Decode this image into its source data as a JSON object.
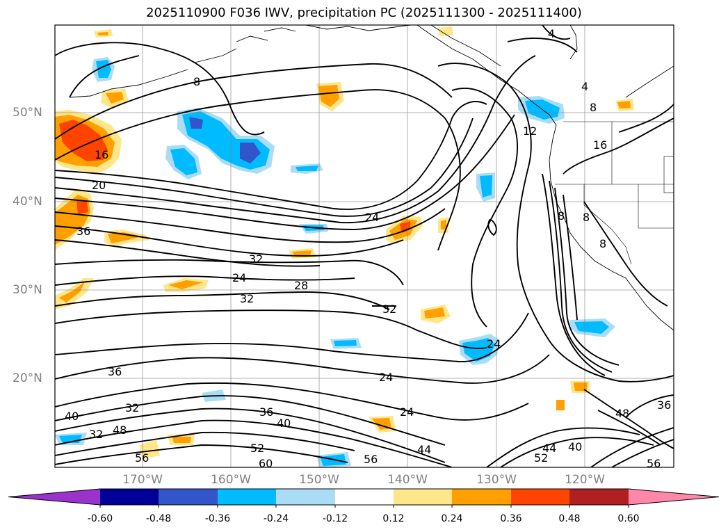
{
  "title": "2025110900 F036 IWV, precipitation PC (2025111300 - 2025111400)",
  "lat_labels": [
    "50°N",
    "40°N",
    "30°N",
    "20°N"
  ],
  "lon_labels": [
    "170°W",
    "160°W",
    "150°W",
    "140°W",
    "130°W",
    "120°W"
  ],
  "contour_labels": [
    "4",
    "8",
    "4",
    "8",
    "12",
    "16",
    "8",
    "8",
    "8",
    "16",
    "20",
    "24",
    "36",
    "32",
    "24",
    "28",
    "32",
    "32",
    "36",
    "24",
    "40",
    "32",
    "36",
    "40",
    "24",
    "32",
    "48",
    "56",
    "52",
    "60",
    "56",
    "44",
    "24",
    "40",
    "44",
    "48",
    "36",
    "52",
    "56"
  ],
  "colorbar": {
    "ticks": [
      "-0.60",
      "-0.48",
      "-0.36",
      "-0.24",
      "-0.12",
      "0.12",
      "0.24",
      "0.36",
      "0.48",
      "0.60"
    ],
    "colors": [
      "#9933cc",
      "#000099",
      "#3355cc",
      "#00bbff",
      "#aaddf5",
      "#ffffff",
      "#ffe68a",
      "#ff9f00",
      "#ff4400",
      "#b02020",
      "#ff88aa"
    ]
  }
}
